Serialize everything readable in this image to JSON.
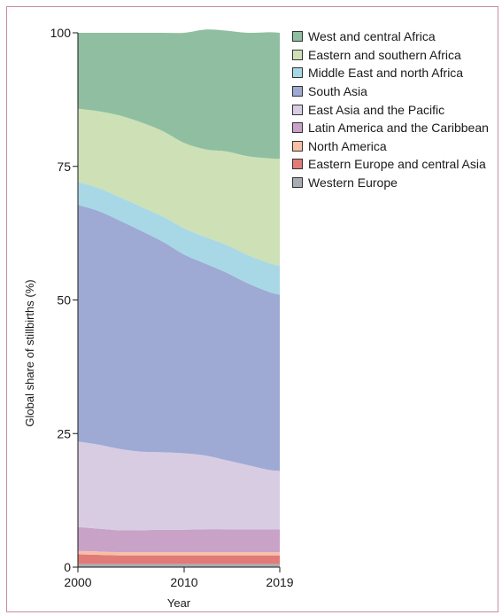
{
  "chart_data": {
    "type": "area",
    "stacked": true,
    "xlabel": "Year",
    "ylabel": "Global share of stillbirths (%)",
    "xlim": [
      2000,
      2019
    ],
    "ylim": [
      0,
      100
    ],
    "x_ticks": [
      2000,
      2010,
      2019
    ],
    "y_ticks": [
      0,
      25,
      50,
      75,
      100
    ],
    "grid": false,
    "legend_position": "right",
    "x": [
      2000,
      2002,
      2004,
      2006,
      2008,
      2010,
      2012,
      2014,
      2016,
      2018,
      2019
    ],
    "series": [
      {
        "name": "Western Europe",
        "color": "#a7adb2",
        "values": [
          0.6,
          0.6,
          0.6,
          0.6,
          0.6,
          0.6,
          0.6,
          0.6,
          0.6,
          0.6,
          0.6
        ]
      },
      {
        "name": "Eastern Europe and central Asia",
        "color": "#e07b78",
        "values": [
          1.8,
          1.7,
          1.6,
          1.6,
          1.6,
          1.6,
          1.6,
          1.6,
          1.6,
          1.6,
          1.6
        ]
      },
      {
        "name": "North America",
        "color": "#f7bfa6",
        "values": [
          0.6,
          0.6,
          0.6,
          0.6,
          0.6,
          0.6,
          0.6,
          0.6,
          0.6,
          0.6,
          0.6
        ]
      },
      {
        "name": "Latin America and the Caribbean",
        "color": "#c9a2c8",
        "values": [
          4.5,
          4.3,
          4.1,
          4.1,
          4.2,
          4.2,
          4.3,
          4.3,
          4.3,
          4.3,
          4.3
        ]
      },
      {
        "name": "East Asia and the Pacific",
        "color": "#d8cce3",
        "values": [
          16.0,
          15.7,
          15.2,
          14.7,
          14.5,
          14.3,
          13.8,
          12.9,
          12.0,
          11.1,
          10.9
        ]
      },
      {
        "name": "South Asia",
        "color": "#9eaad4",
        "values": [
          44.3,
          43.7,
          42.7,
          41.3,
          39.4,
          37.2,
          35.9,
          35.1,
          34.0,
          33.3,
          33.0
        ]
      },
      {
        "name": "Middle East and north Africa",
        "color": "#a8d8e6",
        "values": [
          4.3,
          4.3,
          4.4,
          4.5,
          4.7,
          4.9,
          5.0,
          5.2,
          5.3,
          5.4,
          5.4
        ]
      },
      {
        "name": "Eastern and southern Africa",
        "color": "#cde0b6",
        "values": [
          13.7,
          14.4,
          15.3,
          15.8,
          16.0,
          16.0,
          16.4,
          17.5,
          18.5,
          19.6,
          20.0
        ]
      },
      {
        "name": "West and central Africa",
        "color": "#8fbfa0",
        "values": [
          14.2,
          14.7,
          15.5,
          16.8,
          18.4,
          20.6,
          22.4,
          22.6,
          23.1,
          23.6,
          23.6
        ]
      }
    ]
  }
}
